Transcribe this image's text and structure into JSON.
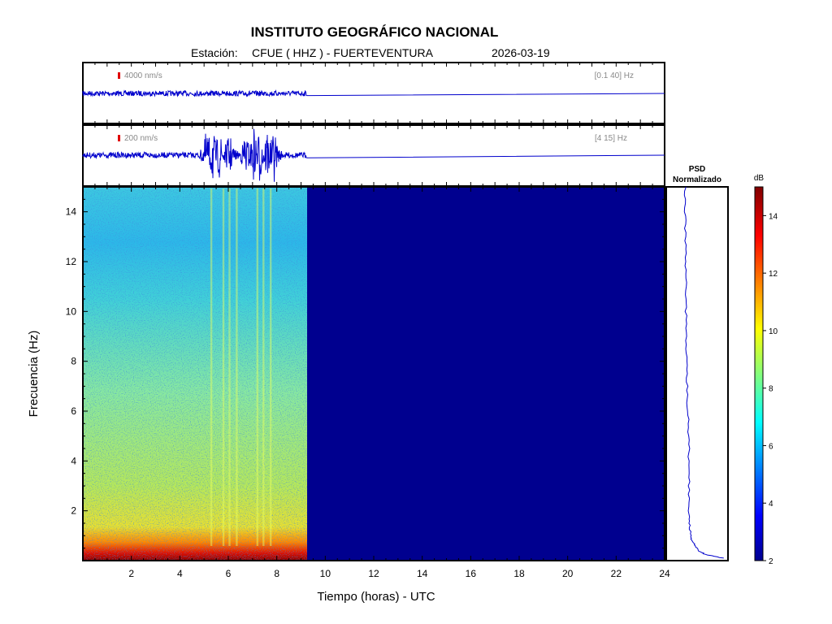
{
  "header": {
    "title": "INSTITUTO GEOGRÁFICO NACIONAL",
    "station_prefix": "Estación:",
    "station": "CFUE ( HHZ ) - FUERTEVENTURA",
    "date": "2026-03-19"
  },
  "chart_data": [
    {
      "type": "line",
      "panel": "broadband-trace",
      "scale_label": "4000 nm/s",
      "filter_label": "[0.1 40] Hz",
      "data_end_hour": 9.25,
      "xlim": [
        0,
        24
      ]
    },
    {
      "type": "line",
      "panel": "filtered-trace",
      "scale_label": "200 nm/s",
      "filter_label": "[4 15] Hz",
      "data_end_hour": 9.25,
      "events_hours": [
        5.1,
        5.35,
        5.65,
        6.05,
        6.7,
        7.05,
        7.3,
        7.6,
        7.9
      ],
      "xlim": [
        0,
        24
      ]
    },
    {
      "type": "heatmap",
      "panel": "spectrogram",
      "xlabel": "Tiempo (horas) - UTC",
      "ylabel": "Frecuencia  (Hz)",
      "xlim": [
        0,
        24
      ],
      "ylim": [
        0,
        15
      ],
      "xticks": [
        2,
        4,
        6,
        8,
        10,
        12,
        14,
        16,
        18,
        20,
        22,
        24
      ],
      "yticks": [
        2,
        4,
        6,
        8,
        10,
        12,
        14
      ],
      "data_end_hour": 9.25,
      "bright_lines_hours": [
        5.3,
        5.8,
        6.05,
        6.35,
        7.2,
        7.45,
        7.75
      ]
    },
    {
      "type": "line",
      "panel": "psd",
      "title_line1": "PSD",
      "title_line2": "Normalizado",
      "freq_hz": [
        0.1,
        0.25,
        0.4,
        0.6,
        0.8,
        1.0,
        1.5,
        2.0,
        3.0,
        4.0,
        5.0,
        6.0,
        7.0,
        8.0,
        9.0,
        10.0,
        11.0,
        12.0,
        13.0,
        14.0,
        15.0
      ],
      "value": [
        1.0,
        0.55,
        0.4,
        0.3,
        0.24,
        0.2,
        0.17,
        0.16,
        0.16,
        0.16,
        0.155,
        0.13,
        0.11,
        0.095,
        0.09,
        0.085,
        0.08,
        0.075,
        0.07,
        0.07,
        0.07
      ]
    },
    {
      "type": "heatmap",
      "panel": "colorbar",
      "unit_label": "dB",
      "range": [
        2,
        15
      ],
      "ticks": [
        2,
        4,
        6,
        8,
        10,
        12,
        14
      ]
    }
  ]
}
